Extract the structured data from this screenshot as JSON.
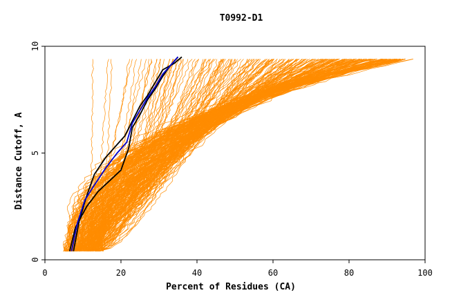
{
  "chart_data": {
    "type": "line",
    "title": "T0992-D1",
    "xlabel": "Percent of Residues (CA)",
    "ylabel": "Distance Cutoff, A",
    "xlim": [
      0,
      100
    ],
    "ylim": [
      0,
      10
    ],
    "x_ticks": [
      "0",
      "20",
      "40",
      "60",
      "80",
      "100"
    ],
    "y_ticks": [
      "0",
      "5",
      "10"
    ],
    "grid": false,
    "colors": {
      "background_models": "#ff8c00",
      "highlight_black": "#000000",
      "highlight_blue": "#0000cd"
    },
    "series": [
      {
        "name": "highlight-black-a",
        "color": "#000000",
        "x": [
          6.5,
          8,
          11,
          14,
          17,
          20,
          22,
          23,
          25,
          27,
          29,
          31,
          33,
          35
        ],
        "y": [
          0.4,
          1.5,
          2.5,
          3.2,
          3.7,
          4.2,
          5.2,
          6.2,
          6.8,
          7.5,
          8.0,
          8.6,
          9.1,
          9.5
        ]
      },
      {
        "name": "highlight-black-b",
        "color": "#000000",
        "x": [
          7.5,
          9,
          11,
          13,
          16,
          19,
          21,
          23,
          25,
          27,
          29,
          31,
          34,
          36
        ],
        "y": [
          0.4,
          1.8,
          3.0,
          4.0,
          4.8,
          5.4,
          5.8,
          6.5,
          7.2,
          7.7,
          8.3,
          8.9,
          9.2,
          9.5
        ]
      },
      {
        "name": "highlight-blue",
        "color": "#0000cd",
        "x": [
          7,
          8.5,
          10.5,
          13,
          16,
          19,
          21.5,
          23,
          25,
          27,
          29,
          31,
          33,
          35
        ],
        "y": [
          0.4,
          1.7,
          2.8,
          3.5,
          4.3,
          5.0,
          5.5,
          6.4,
          7.0,
          7.6,
          8.1,
          8.7,
          9.1,
          9.5
        ]
      }
    ]
  }
}
